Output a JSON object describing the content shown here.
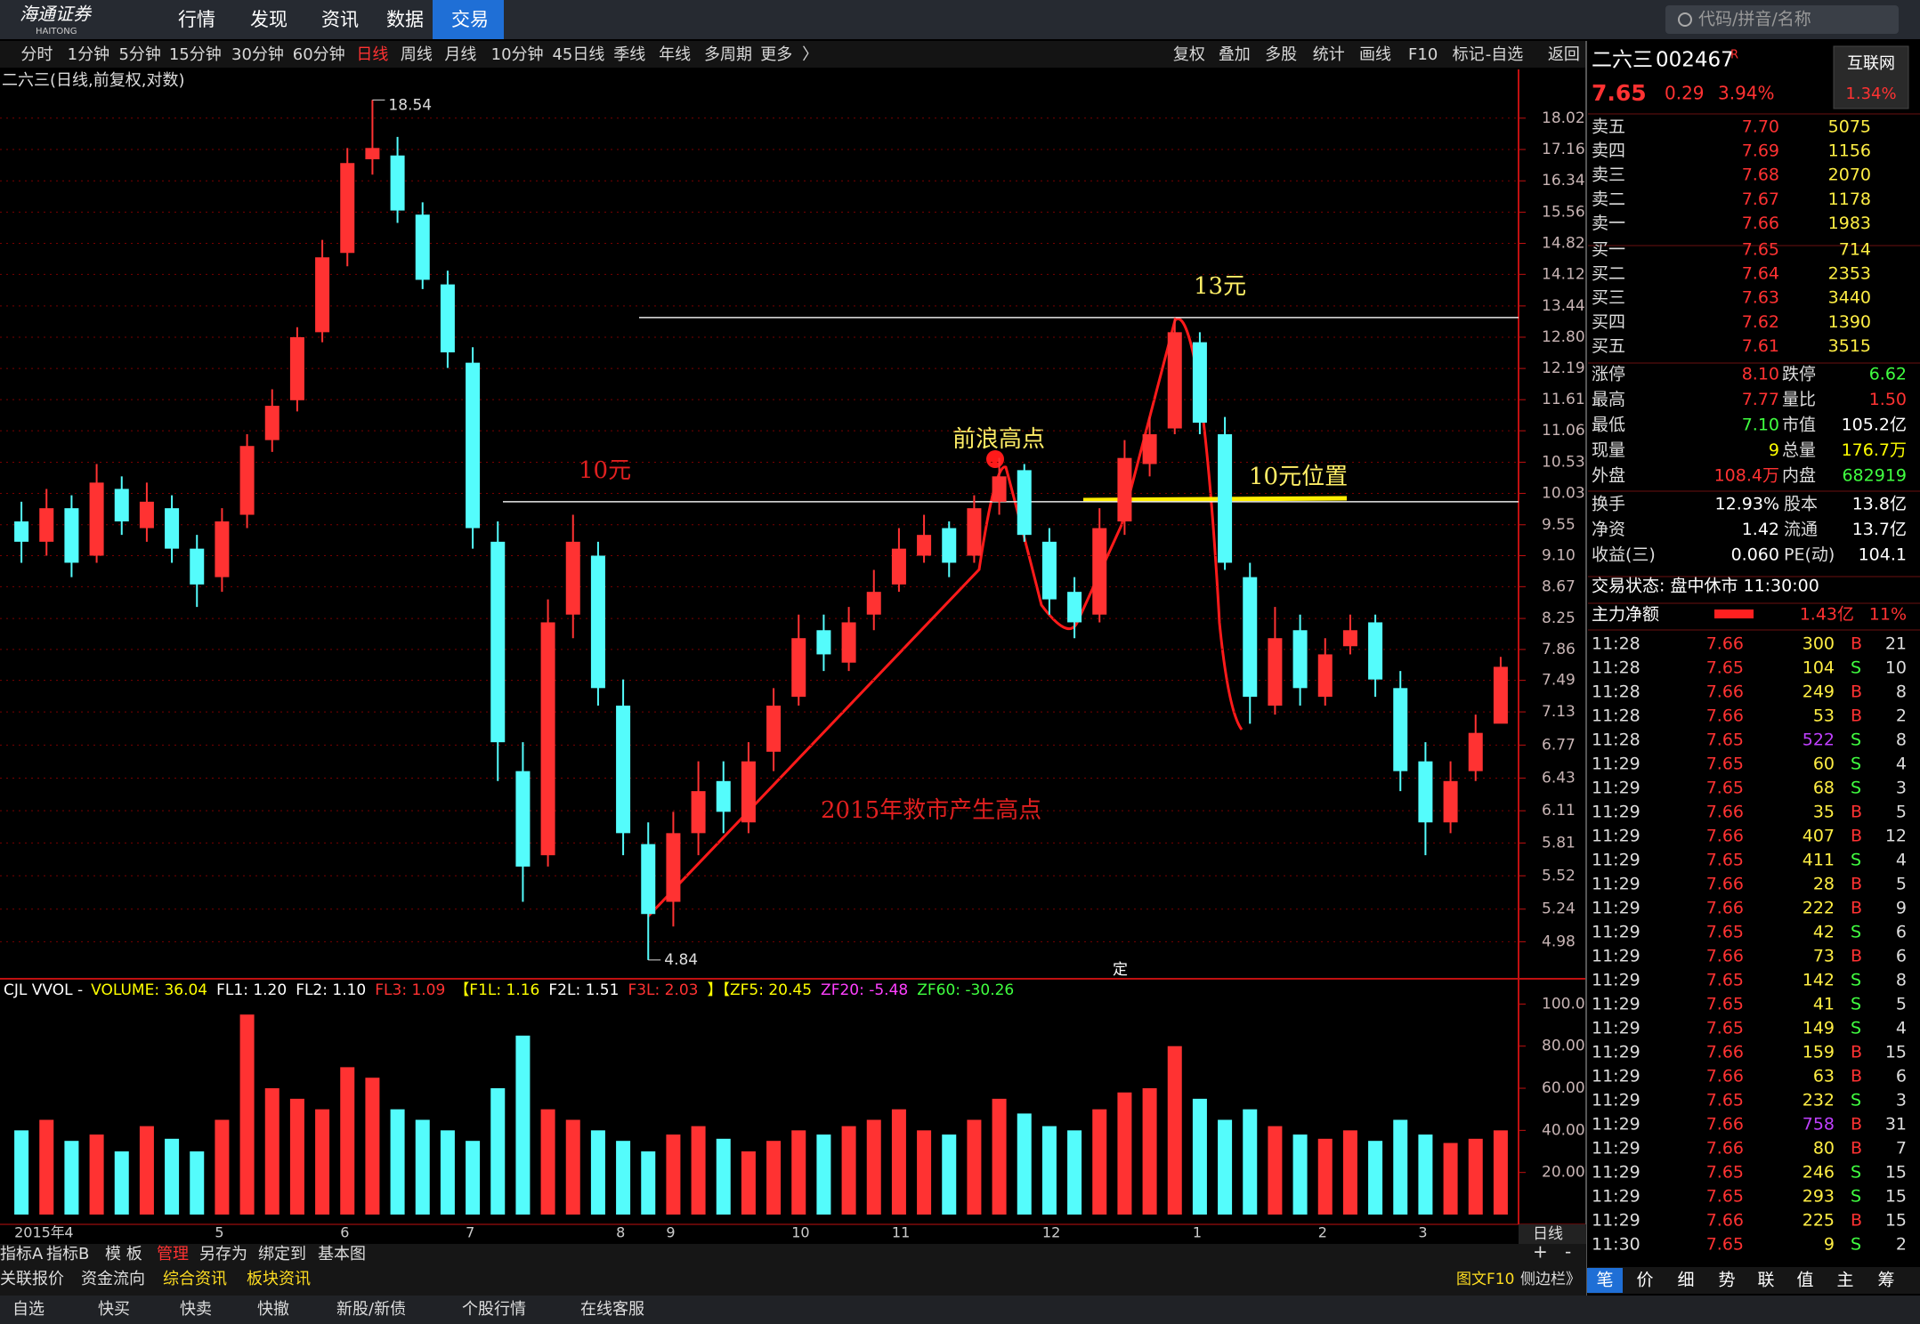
{
  "top_menu": {
    "logo": "海通证券",
    "logo_sub": "HAITONG",
    "items": [
      "行情",
      "发现",
      "资讯",
      "数据",
      "交易"
    ],
    "active_index": 4,
    "search_placeholder": "代码/拼音/名称"
  },
  "toolbar": {
    "left": [
      "分时",
      "1分钟",
      "5分钟",
      "15分钟",
      "30分钟",
      "60分钟",
      "日线",
      "周线",
      "月线",
      "10分钟",
      "45日线",
      "季线",
      "年线",
      "多周期",
      "更多",
      "〉"
    ],
    "active_index": 6,
    "right": [
      "复权",
      "叠加",
      "多股",
      "统计",
      "画线",
      "F10",
      "标记",
      "-自选",
      "返回"
    ]
  },
  "chart_data": {
    "type": "candlestick",
    "title": "二六三(日线,前复权,对数)",
    "categories": [
      "2015年",
      null,
      "4",
      null,
      null,
      null,
      null,
      null,
      "5",
      null,
      null,
      null,
      null,
      "6",
      null,
      null,
      null,
      null,
      "7",
      null,
      null,
      null,
      null,
      null,
      "8",
      null,
      "9",
      null,
      null,
      null,
      null,
      "10",
      null,
      null,
      null,
      "11",
      null,
      null,
      null,
      null,
      null,
      "12",
      null,
      null,
      null,
      null,
      null,
      "1",
      null,
      null,
      null,
      null,
      "2",
      null,
      null,
      null,
      "3",
      null,
      null,
      null
    ],
    "open": [
      9.6,
      9.3,
      9.8,
      9.1,
      10.1,
      9.5,
      9.8,
      9.2,
      8.8,
      9.7,
      10.9,
      11.6,
      12.9,
      14.6,
      16.9,
      17.0,
      15.5,
      13.9,
      12.3,
      9.3,
      6.5,
      5.7,
      8.3,
      9.1,
      7.2,
      5.8,
      5.3,
      5.9,
      6.4,
      6.0,
      6.7,
      7.3,
      8.1,
      7.7,
      8.3,
      8.7,
      9.1,
      9.5,
      9.1,
      9.9,
      10.4,
      9.3,
      8.6,
      8.3,
      9.6,
      10.5,
      11.1,
      12.7,
      11.0,
      8.8,
      7.2,
      8.1,
      7.3,
      7.9,
      8.2,
      7.4,
      6.6,
      6.0,
      6.5,
      7.0
    ],
    "high": [
      9.9,
      10.1,
      10.0,
      10.5,
      10.3,
      10.2,
      10.0,
      9.4,
      9.8,
      11.0,
      11.8,
      13.0,
      14.9,
      17.2,
      18.54,
      17.5,
      15.8,
      14.2,
      12.6,
      9.6,
      6.8,
      8.5,
      9.7,
      9.3,
      7.5,
      6.0,
      6.1,
      6.6,
      6.6,
      6.8,
      7.4,
      8.3,
      8.3,
      8.4,
      8.9,
      9.5,
      9.7,
      9.6,
      10.0,
      10.6,
      10.5,
      9.5,
      8.8,
      9.8,
      10.9,
      11.3,
      13.2,
      12.9,
      11.3,
      9.0,
      8.4,
      8.3,
      8.0,
      8.3,
      8.3,
      7.6,
      6.8,
      6.6,
      7.1,
      7.77
    ],
    "low": [
      9.0,
      9.1,
      8.8,
      9.0,
      9.4,
      9.3,
      9.0,
      8.4,
      8.6,
      9.5,
      10.7,
      11.4,
      12.7,
      14.3,
      16.5,
      15.3,
      13.8,
      12.2,
      9.2,
      6.4,
      5.3,
      5.6,
      8.0,
      7.2,
      5.7,
      4.84,
      5.1,
      5.7,
      5.9,
      5.9,
      6.5,
      7.2,
      7.6,
      7.6,
      8.1,
      8.6,
      9.0,
      8.8,
      9.0,
      9.7,
      9.3,
      8.3,
      8.0,
      8.2,
      9.4,
      10.3,
      11.0,
      11.0,
      8.9,
      7.0,
      7.1,
      7.2,
      7.2,
      7.8,
      7.3,
      6.3,
      5.7,
      5.9,
      6.4,
      7.1
    ],
    "close": [
      9.3,
      9.8,
      9.0,
      10.2,
      9.6,
      9.9,
      9.2,
      8.7,
      9.6,
      10.8,
      11.5,
      12.8,
      14.5,
      16.8,
      17.2,
      15.6,
      14.0,
      12.5,
      9.5,
      6.8,
      5.6,
      8.2,
      9.3,
      7.4,
      5.9,
      5.2,
      5.9,
      6.3,
      6.1,
      6.6,
      7.2,
      8.0,
      7.8,
      8.2,
      8.6,
      9.2,
      9.4,
      9.0,
      9.8,
      10.3,
      9.4,
      8.5,
      8.2,
      9.5,
      10.6,
      11.0,
      12.9,
      11.2,
      9.0,
      7.3,
      8.0,
      7.4,
      7.8,
      8.1,
      7.5,
      6.5,
      6.0,
      6.4,
      6.9,
      7.65
    ],
    "up_color": "#ff3232",
    "down_color": "#54fcfc",
    "log_scale": true,
    "grid": true,
    "ylim": [
      4.7,
      18.6
    ],
    "yticks": [
      18.02,
      17.16,
      16.34,
      15.56,
      14.82,
      14.12,
      13.44,
      {
        "value": 12.8,
        "label": "12.80"
      },
      12.19,
      11.61,
      11.06,
      10.53,
      10.03,
      9.55,
      {
        "value": 9.1,
        "label": "9.10"
      },
      8.67,
      8.25,
      7.86,
      7.49,
      7.13,
      6.77,
      6.43,
      6.11,
      5.81,
      5.52,
      5.24,
      4.98
    ],
    "hlines": [
      {
        "value": 13.2,
        "label": "13元"
      },
      {
        "value": 9.9,
        "label": "10元"
      }
    ],
    "annotations": [
      "前浪高点",
      "10元位置",
      "2015年救市产生高点"
    ],
    "marker": "定",
    "period_label": "日线",
    "volume": {
      "values": [
        40,
        45,
        35,
        38,
        30,
        42,
        36,
        30,
        45,
        95,
        60,
        55,
        50,
        70,
        65,
        50,
        45,
        40,
        35,
        60,
        85,
        50,
        45,
        40,
        35,
        30,
        38,
        42,
        36,
        30,
        35,
        40,
        38,
        42,
        45,
        50,
        40,
        38,
        45,
        55,
        48,
        42,
        40,
        50,
        58,
        60,
        80,
        55,
        45,
        50,
        42,
        38,
        36,
        40,
        35,
        45,
        38,
        34,
        36,
        40
      ],
      "ylim": [
        0,
        112
      ],
      "yticks": [
        {
          "value": 100,
          "label": "100.0"
        },
        {
          "value": 80,
          "label": "80.00"
        },
        {
          "value": 60,
          "label": "60.00"
        },
        {
          "value": 40,
          "label": "40.00"
        },
        {
          "value": 20,
          "label": "20.00"
        }
      ]
    },
    "indicator": [
      {
        "text": "CJL VVOL -",
        "color": "#ffffff"
      },
      {
        "text": "VOLUME: 36.04",
        "color": "#ffff00"
      },
      {
        "text": "FL1: 1.20",
        "color": "#ffffff"
      },
      {
        "text": "FL2: 1.10",
        "color": "#ffffff"
      },
      {
        "text": "FL3: 1.09",
        "color": "#ff3232"
      },
      {
        "text": "【F1L: 1.16",
        "color": "#ffff00"
      },
      {
        "text": "F2L: 1.51",
        "color": "#ffffff"
      },
      {
        "text": "F3L: 2.03",
        "color": "#ff3232"
      },
      {
        "text": "】【ZF5: 20.45",
        "color": "#ffff00"
      },
      {
        "text": "ZF20: -5.48",
        "color": "#ff40ff"
      },
      {
        "text": "ZF60: -30.26",
        "color": "#40ff40"
      }
    ]
  },
  "bottom": {
    "row1": [
      "指标A",
      "指标B",
      "模 板",
      "管理",
      "另存为",
      "绑定到",
      "基本图"
    ],
    "row1_active": 3,
    "row1_right": [
      "+",
      "-"
    ],
    "row2": [
      "关联报价",
      "资金流向",
      "综合资讯",
      "板块资讯"
    ],
    "row2_right": [
      "图文F10",
      "侧边栏》"
    ],
    "row3": [
      "自选",
      "快买",
      "快卖",
      "快撤",
      "新股/新债",
      "个股行情",
      "在线客服"
    ]
  },
  "quote": {
    "name": "二六三",
    "code": "002467",
    "flag": "R",
    "price": "7.65",
    "change": "0.29",
    "pct": "3.94%",
    "sector": "互联网",
    "sector_pct": "1.34%",
    "sell": [
      [
        "卖五",
        "7.70",
        "5075"
      ],
      [
        "卖四",
        "7.69",
        "1156"
      ],
      [
        "卖三",
        "7.68",
        "2070"
      ],
      [
        "卖二",
        "7.67",
        "1178"
      ],
      [
        "卖一",
        "7.66",
        "1983"
      ]
    ],
    "buy": [
      [
        "买一",
        "7.65",
        "714"
      ],
      [
        "买二",
        "7.64",
        "2353"
      ],
      [
        "买三",
        "7.63",
        "3440"
      ],
      [
        "买四",
        "7.62",
        "1390"
      ],
      [
        "买五",
        "7.61",
        "3515"
      ]
    ],
    "stats": [
      [
        "涨停",
        "8.10",
        "#ff3232",
        "跌停",
        "6.62",
        "#40ff40"
      ],
      [
        "最高",
        "7.77",
        "#ff3232",
        "量比",
        "1.50",
        "#ff3232"
      ],
      [
        "最低",
        "7.10",
        "#40ff40",
        "市值",
        "105.2亿",
        "#ffffff"
      ],
      [
        "现量",
        "9",
        "#ffff00",
        "总量",
        "176.7万",
        "#ffff00"
      ],
      [
        "外盘",
        "108.4万",
        "#ff3232",
        "内盘",
        "682919",
        "#40ff40"
      ]
    ],
    "stats2": [
      [
        "换手",
        "12.93%",
        "股本",
        "13.8亿"
      ],
      [
        "净资",
        "1.42",
        "流通",
        "13.7亿"
      ],
      [
        "收益(三)",
        "0.060",
        "PE(动)",
        "104.1"
      ]
    ],
    "status": "交易状态: 盘中休市 11:30:00",
    "flow_label": "主力净额",
    "flow_value": "1.43亿",
    "flow_pct": "11%",
    "ticks": [
      {
        "t": "11:28",
        "p": "7.66",
        "v": "300",
        "s": "B",
        "n": "21"
      },
      {
        "t": "11:28",
        "p": "7.65",
        "v": "104",
        "s": "S",
        "n": "10"
      },
      {
        "t": "11:28",
        "p": "7.66",
        "v": "249",
        "s": "B",
        "n": "8"
      },
      {
        "t": "11:28",
        "p": "7.66",
        "v": "53",
        "s": "B",
        "n": "2"
      },
      {
        "t": "11:28",
        "p": "7.65",
        "v": "522",
        "s": "S",
        "n": "8",
        "vcolor": "#c040ff"
      },
      {
        "t": "11:29",
        "p": "7.65",
        "v": "60",
        "s": "S",
        "n": "4"
      },
      {
        "t": "11:29",
        "p": "7.65",
        "v": "68",
        "s": "S",
        "n": "3"
      },
      {
        "t": "11:29",
        "p": "7.66",
        "v": "35",
        "s": "B",
        "n": "5"
      },
      {
        "t": "11:29",
        "p": "7.66",
        "v": "407",
        "s": "B",
        "n": "12"
      },
      {
        "t": "11:29",
        "p": "7.65",
        "v": "411",
        "s": "S",
        "n": "4"
      },
      {
        "t": "11:29",
        "p": "7.66",
        "v": "28",
        "s": "B",
        "n": "5"
      },
      {
        "t": "11:29",
        "p": "7.66",
        "v": "222",
        "s": "B",
        "n": "9"
      },
      {
        "t": "11:29",
        "p": "7.65",
        "v": "42",
        "s": "S",
        "n": "6"
      },
      {
        "t": "11:29",
        "p": "7.66",
        "v": "73",
        "s": "B",
        "n": "6"
      },
      {
        "t": "11:29",
        "p": "7.65",
        "v": "142",
        "s": "S",
        "n": "8"
      },
      {
        "t": "11:29",
        "p": "7.65",
        "v": "41",
        "s": "S",
        "n": "5"
      },
      {
        "t": "11:29",
        "p": "7.65",
        "v": "149",
        "s": "S",
        "n": "4"
      },
      {
        "t": "11:29",
        "p": "7.66",
        "v": "159",
        "s": "B",
        "n": "15"
      },
      {
        "t": "11:29",
        "p": "7.66",
        "v": "63",
        "s": "B",
        "n": "6"
      },
      {
        "t": "11:29",
        "p": "7.65",
        "v": "232",
        "s": "S",
        "n": "3"
      },
      {
        "t": "11:29",
        "p": "7.66",
        "v": "758",
        "s": "B",
        "n": "31",
        "vcolor": "#c040ff"
      },
      {
        "t": "11:29",
        "p": "7.66",
        "v": "80",
        "s": "B",
        "n": "7"
      },
      {
        "t": "11:29",
        "p": "7.65",
        "v": "246",
        "s": "S",
        "n": "15"
      },
      {
        "t": "11:29",
        "p": "7.65",
        "v": "293",
        "s": "S",
        "n": "15"
      },
      {
        "t": "11:29",
        "p": "7.66",
        "v": "225",
        "s": "B",
        "n": "15"
      },
      {
        "t": "11:30",
        "p": "7.65",
        "v": "9",
        "s": "S",
        "n": "2"
      }
    ],
    "tabs": [
      "笔",
      "价",
      "细",
      "势",
      "联",
      "值",
      "主",
      "筹"
    ],
    "tab_active": 0
  }
}
